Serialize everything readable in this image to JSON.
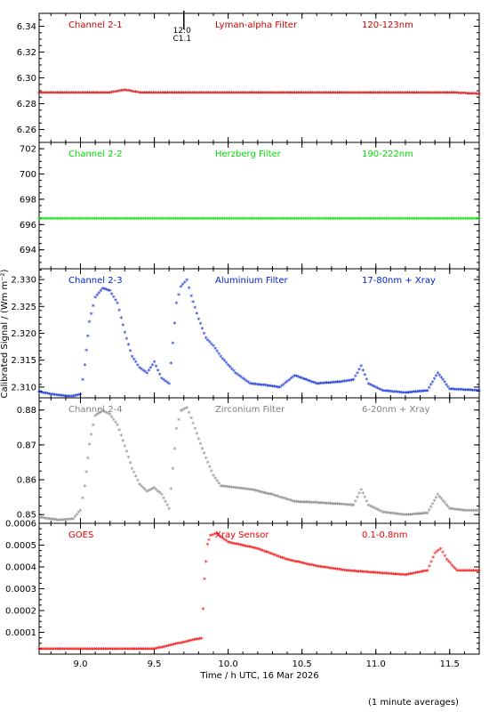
{
  "chart_data": [
    {
      "type": "scatter",
      "channel_label": "Channel 2-1",
      "filter_label": "Lyman-alpha Filter",
      "band_label": "120-123nm",
      "color": "#cc0000",
      "ylim": [
        6.25,
        6.35
      ],
      "yticks": [
        6.26,
        6.28,
        6.3,
        6.32,
        6.34
      ],
      "ytick_labels": [
        "6.26",
        "6.28",
        "6.30",
        "6.32",
        "6.34"
      ],
      "annotation": {
        "x": 9.7,
        "lines": [
          "12:0",
          "C1.1"
        ]
      },
      "series": [
        {
          "x": [
            8.72,
            9.0,
            9.2,
            9.25,
            9.3,
            9.35,
            9.4,
            9.6,
            10.0,
            10.5,
            11.0,
            11.5,
            11.7
          ],
          "y": [
            6.288,
            6.288,
            6.288,
            6.289,
            6.29,
            6.289,
            6.288,
            6.288,
            6.288,
            6.288,
            6.288,
            6.288,
            6.287
          ]
        }
      ]
    },
    {
      "type": "scatter",
      "channel_label": "Channel 2-2",
      "filter_label": "Herzberg Filter",
      "band_label": "190-222nm",
      "color": "#00dd00",
      "ylim": [
        692.5,
        702.5
      ],
      "yticks": [
        694,
        696,
        698,
        700,
        702
      ],
      "ytick_labels": [
        "694",
        "696",
        "698",
        "700",
        "702"
      ],
      "series": [
        {
          "x": [
            8.72,
            9.0,
            9.5,
            10.0,
            10.5,
            11.0,
            11.5,
            11.7
          ],
          "y": [
            696.4,
            696.4,
            696.4,
            696.4,
            696.4,
            696.4,
            696.4,
            696.4
          ]
        }
      ]
    },
    {
      "type": "scatter",
      "channel_label": "Channel 2-3",
      "filter_label": "Aluminium Filter",
      "band_label": "17-80nm + Xray",
      "color": "#0022cc",
      "ylim": [
        2.308,
        2.332
      ],
      "yticks": [
        2.31,
        2.315,
        2.32,
        2.325,
        2.33
      ],
      "ytick_labels": [
        "2.310",
        "2.315",
        "2.320",
        "2.325",
        "2.330"
      ],
      "series": [
        {
          "x": [
            8.72,
            8.8,
            8.9,
            8.95,
            9.0,
            9.03,
            9.06,
            9.1,
            9.15,
            9.2,
            9.25,
            9.3,
            9.35,
            9.4,
            9.45,
            9.5,
            9.55,
            9.6,
            9.65,
            9.68,
            9.72,
            9.75,
            9.8,
            9.85,
            9.9,
            9.95,
            10.05,
            10.15,
            10.25,
            10.35,
            10.45,
            10.6,
            10.75,
            10.85,
            10.9,
            10.95,
            11.05,
            11.2,
            11.35,
            11.42,
            11.5,
            11.7
          ],
          "y": [
            2.309,
            2.3085,
            2.3082,
            2.3082,
            2.3085,
            2.314,
            2.322,
            2.3265,
            2.3282,
            2.3278,
            2.3255,
            2.32,
            2.3155,
            2.3135,
            2.3125,
            2.3145,
            2.3115,
            2.3105,
            2.3255,
            2.3285,
            2.3298,
            2.3268,
            2.3225,
            2.319,
            2.3175,
            2.3155,
            2.3125,
            2.3105,
            2.3102,
            2.3098,
            2.312,
            2.3105,
            2.3108,
            2.3112,
            2.3138,
            2.3105,
            2.3092,
            2.3088,
            2.3092,
            2.3125,
            2.3095,
            2.3092
          ]
        }
      ]
    },
    {
      "type": "scatter",
      "channel_label": "Channel 2-4",
      "filter_label": "Zirconium Filter",
      "band_label": "6-20nm + Xray",
      "color": "#808080",
      "ylim": [
        0.8475,
        0.8835
      ],
      "yticks": [
        0.85,
        0.86,
        0.87,
        0.88
      ],
      "ytick_labels": [
        "0.85",
        "0.86",
        "0.87",
        "0.88"
      ],
      "series": [
        {
          "x": [
            8.72,
            8.85,
            8.95,
            9.0,
            9.03,
            9.06,
            9.1,
            9.15,
            9.2,
            9.25,
            9.3,
            9.35,
            9.4,
            9.45,
            9.5,
            9.55,
            9.6,
            9.65,
            9.68,
            9.72,
            9.75,
            9.8,
            9.85,
            9.9,
            9.95,
            10.05,
            10.15,
            10.3,
            10.45,
            10.6,
            10.75,
            10.85,
            10.9,
            10.95,
            11.05,
            11.2,
            11.35,
            11.42,
            11.5,
            11.6,
            11.7
          ],
          "y": [
            0.849,
            0.8482,
            0.8485,
            0.851,
            0.858,
            0.87,
            0.8782,
            0.8795,
            0.8785,
            0.8755,
            0.8695,
            0.863,
            0.8585,
            0.8565,
            0.8575,
            0.8555,
            0.8515,
            0.8745,
            0.8795,
            0.8805,
            0.8775,
            0.8715,
            0.866,
            0.861,
            0.858,
            0.8575,
            0.857,
            0.8555,
            0.8535,
            0.8532,
            0.8528,
            0.8525,
            0.857,
            0.8525,
            0.8505,
            0.8497,
            0.8502,
            0.8555,
            0.8515,
            0.851,
            0.851
          ]
        }
      ]
    },
    {
      "type": "scatter",
      "channel_label": "GOES",
      "filter_label": "Xray Sensor",
      "band_label": "0.1-0.8nm",
      "color": "#ee0000",
      "ylim": [
        0.0,
        0.0006
      ],
      "yticks": [
        0.0001,
        0.0002,
        0.0003,
        0.0004,
        0.0005,
        0.0006
      ],
      "ytick_labels": [
        "0.0001",
        "0.0002",
        "0.0003",
        "0.0004",
        "0.0005",
        "0.0006"
      ],
      "series": [
        {
          "x": [
            8.72,
            9.0,
            9.5,
            9.82,
            9.84,
            9.86,
            9.88,
            9.92,
            10.0,
            10.2,
            10.4,
            10.6,
            10.8,
            11.0,
            11.2,
            11.35,
            11.4,
            11.44,
            11.48,
            11.55,
            11.7
          ],
          "y": [
            2e-05,
            2e-05,
            2e-05,
            7e-05,
            0.00034,
            0.0005,
            0.00054,
            0.00055,
            0.00051,
            0.00048,
            0.00043,
            0.0004,
            0.00038,
            0.00037,
            0.00036,
            0.00038,
            0.00046,
            0.00048,
            0.00043,
            0.00038,
            0.00038
          ]
        }
      ]
    }
  ],
  "x_axis": {
    "xlim": [
      8.72,
      11.7
    ],
    "ticks": [
      9.0,
      9.5,
      10.0,
      10.5,
      11.0,
      11.5
    ],
    "tick_labels": [
      "9.0",
      "9.5",
      "10.0",
      "10.5",
      "11.0",
      "11.5"
    ],
    "label": "Time / h UTC, 16 Mar 2026"
  },
  "y_axis_label": "Calibrated Signal / (Wm m⁻²)",
  "footer_note": "(1 minute averages)"
}
